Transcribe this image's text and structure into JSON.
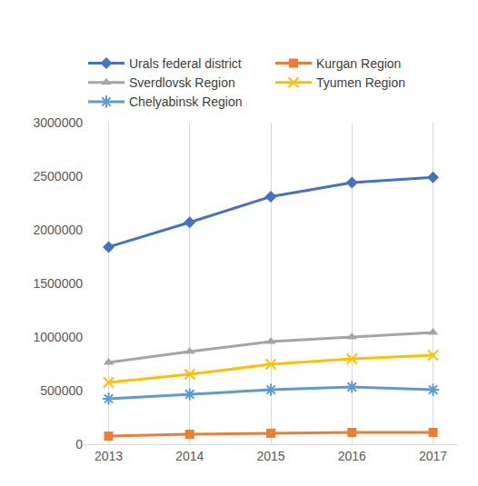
{
  "chart_data": {
    "type": "line",
    "categories": [
      "2013",
      "2014",
      "2015",
      "2016",
      "2017"
    ],
    "series": [
      {
        "name": "Urals federal district",
        "color": "#4472c4",
        "marker": "diamond",
        "values": [
          1840000,
          2070000,
          2310000,
          2440000,
          2490000
        ]
      },
      {
        "name": "Kurgan Region",
        "color": "#ed7d31",
        "marker": "square",
        "values": [
          76000,
          93000,
          102000,
          110000,
          110000
        ]
      },
      {
        "name": "Sverdlovsk Region",
        "color": "#a5a5a5",
        "marker": "triangle",
        "values": [
          763000,
          864000,
          958000,
          1000000,
          1042000
        ]
      },
      {
        "name": "Tyumen Region",
        "color": "#ffc000",
        "marker": "x",
        "values": [
          576000,
          653000,
          746000,
          797000,
          830000
        ]
      },
      {
        "name": "Chelyabinsk Region",
        "color": "#5b9bd5",
        "marker": "asterisk",
        "values": [
          424000,
          466000,
          508000,
          534000,
          508000
        ]
      }
    ],
    "ylim": [
      0,
      3000000
    ],
    "yticks": [
      0,
      500000,
      1000000,
      1500000,
      2000000,
      2500000,
      3000000
    ],
    "grid": true,
    "legend": "top"
  }
}
